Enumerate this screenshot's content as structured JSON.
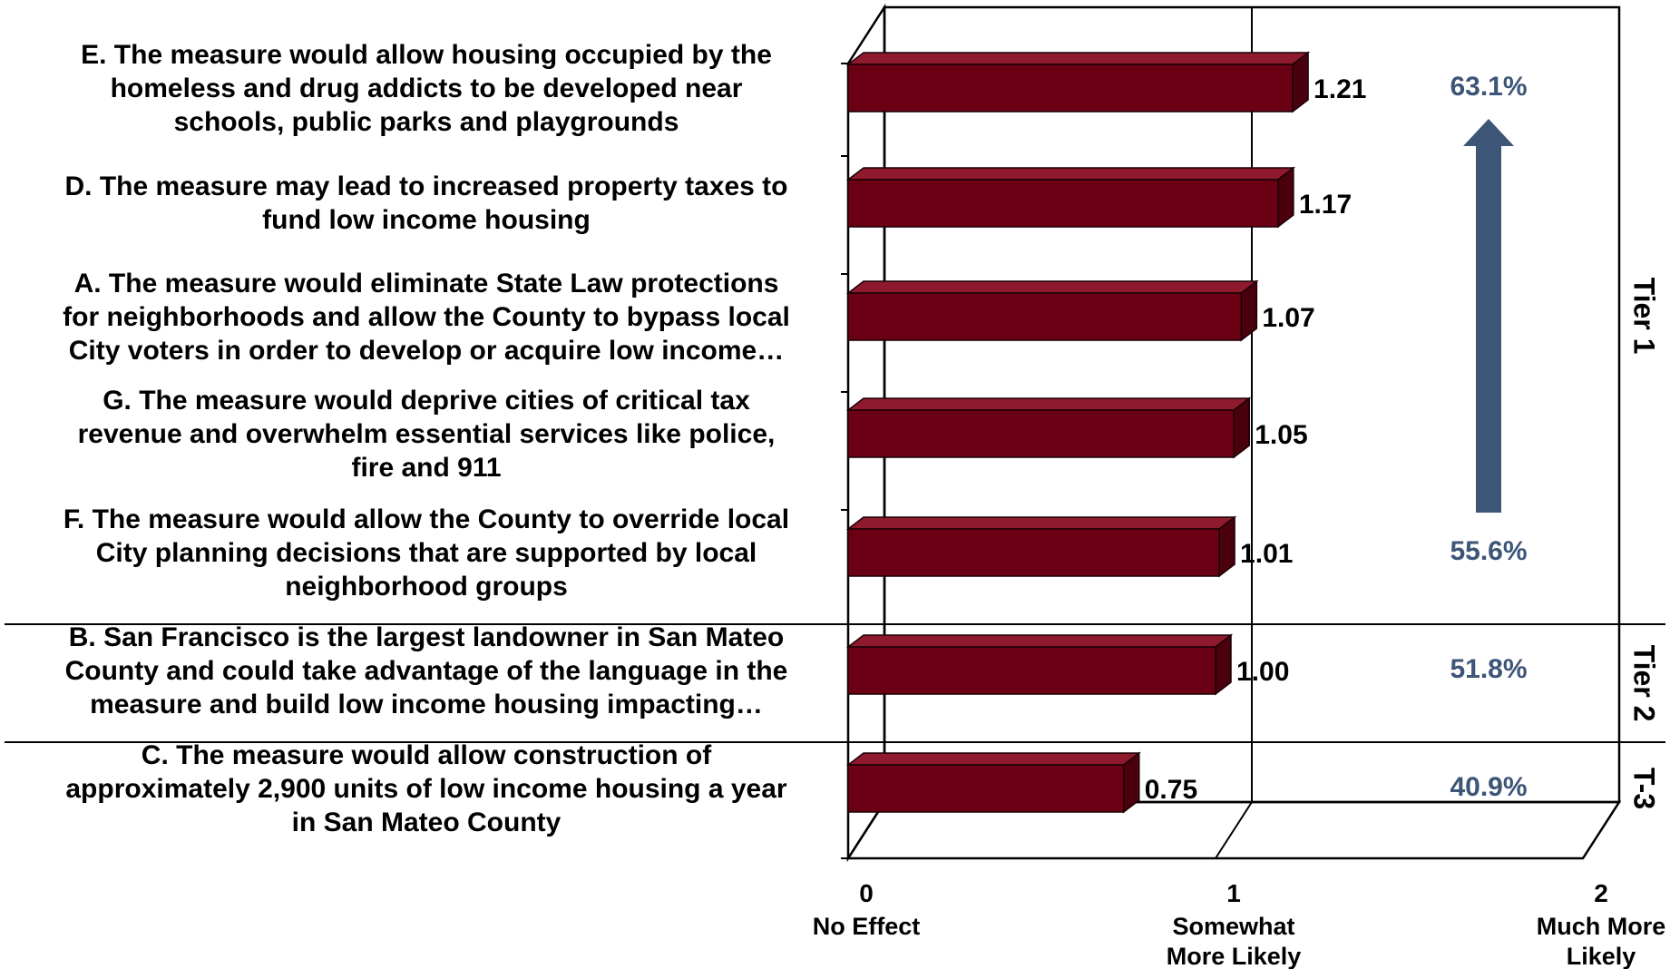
{
  "chart_data": {
    "type": "bar",
    "orientation": "horizontal",
    "style": "3d",
    "categories": [
      "E. The measure would allow housing occupied by the homeless and drug addicts to be developed near schools, public parks and playgrounds",
      "D. The measure may lead to increased property taxes to fund low income housing",
      "A. The measure would eliminate State Law protections for neighborhoods and allow the County to bypass local City voters in order to develop or acquire low income…",
      "G. The measure would deprive cities of critical tax revenue and overwhelm essential services like police, fire and 911",
      "F. The measure would allow the County to override local City planning decisions that are supported by local neighborhood groups",
      "B. San Francisco is the largest landowner in San Mateo County and could take advantage of the language in the measure and build low income housing impacting…",
      "C. The measure would allow construction of approximately 2,900 units of low income housing a year in San Mateo County"
    ],
    "category_lines": [
      [
        "E. The measure would allow housing occupied by the",
        "homeless and drug addicts to be developed near",
        "schools, public parks and playgrounds"
      ],
      [
        "D. The measure may lead to increased property taxes to",
        "fund low income housing"
      ],
      [
        "A. The measure would eliminate State Law protections",
        "for neighborhoods and allow the County to bypass local",
        "City voters in order to develop or acquire low income…"
      ],
      [
        "G. The measure would deprive cities of critical tax",
        "revenue and overwhelm essential services like police,",
        "fire and 911"
      ],
      [
        "F. The measure would allow the County to override local",
        "City planning decisions that are supported by local",
        "neighborhood groups"
      ],
      [
        "B. San Francisco is the largest landowner in San Mateo",
        "County and could take advantage of the language in the",
        "measure and build low income housing impacting…"
      ],
      [
        "C. The measure would allow construction of",
        "approximately 2,900 units of low income housing a year",
        "in San Mateo County"
      ]
    ],
    "values": [
      1.21,
      1.17,
      1.07,
      1.05,
      1.01,
      1.0,
      0.75
    ],
    "value_labels": [
      "1.21",
      "1.17",
      "1.07",
      "1.05",
      "1.01",
      "1.00",
      "0.75"
    ],
    "xlim": [
      0,
      2
    ],
    "x_ticks": [
      {
        "value": 0,
        "number": "0",
        "lines": [
          "No Effect"
        ]
      },
      {
        "value": 1,
        "number": "1",
        "lines": [
          "Somewhat",
          "More  Likely"
        ]
      },
      {
        "value": 2,
        "number": "2",
        "lines": [
          "Much More",
          "Likely"
        ]
      }
    ],
    "percent_annotations": [
      {
        "row": 0,
        "text": "63.1%"
      },
      {
        "row": 4,
        "text": "55.6%"
      },
      {
        "row": 5,
        "text": "51.8%"
      },
      {
        "row": 6,
        "text": "40.9%"
      }
    ],
    "tiers": [
      {
        "label": "Tier 1",
        "rows": [
          0,
          4
        ]
      },
      {
        "label": "Tier 2",
        "rows": [
          5,
          5
        ]
      },
      {
        "label": "T-3",
        "rows": [
          6,
          6
        ]
      }
    ],
    "title": "",
    "xlabel": "",
    "ylabel": "",
    "grid": false,
    "legend": "none",
    "colors": {
      "bar_front": "#6b0014",
      "bar_top": "#8f1a2d",
      "bar_side": "#4a000d",
      "annotation_text": "#3d5577",
      "arrow": "#3d5577",
      "axis": "#000000"
    }
  }
}
